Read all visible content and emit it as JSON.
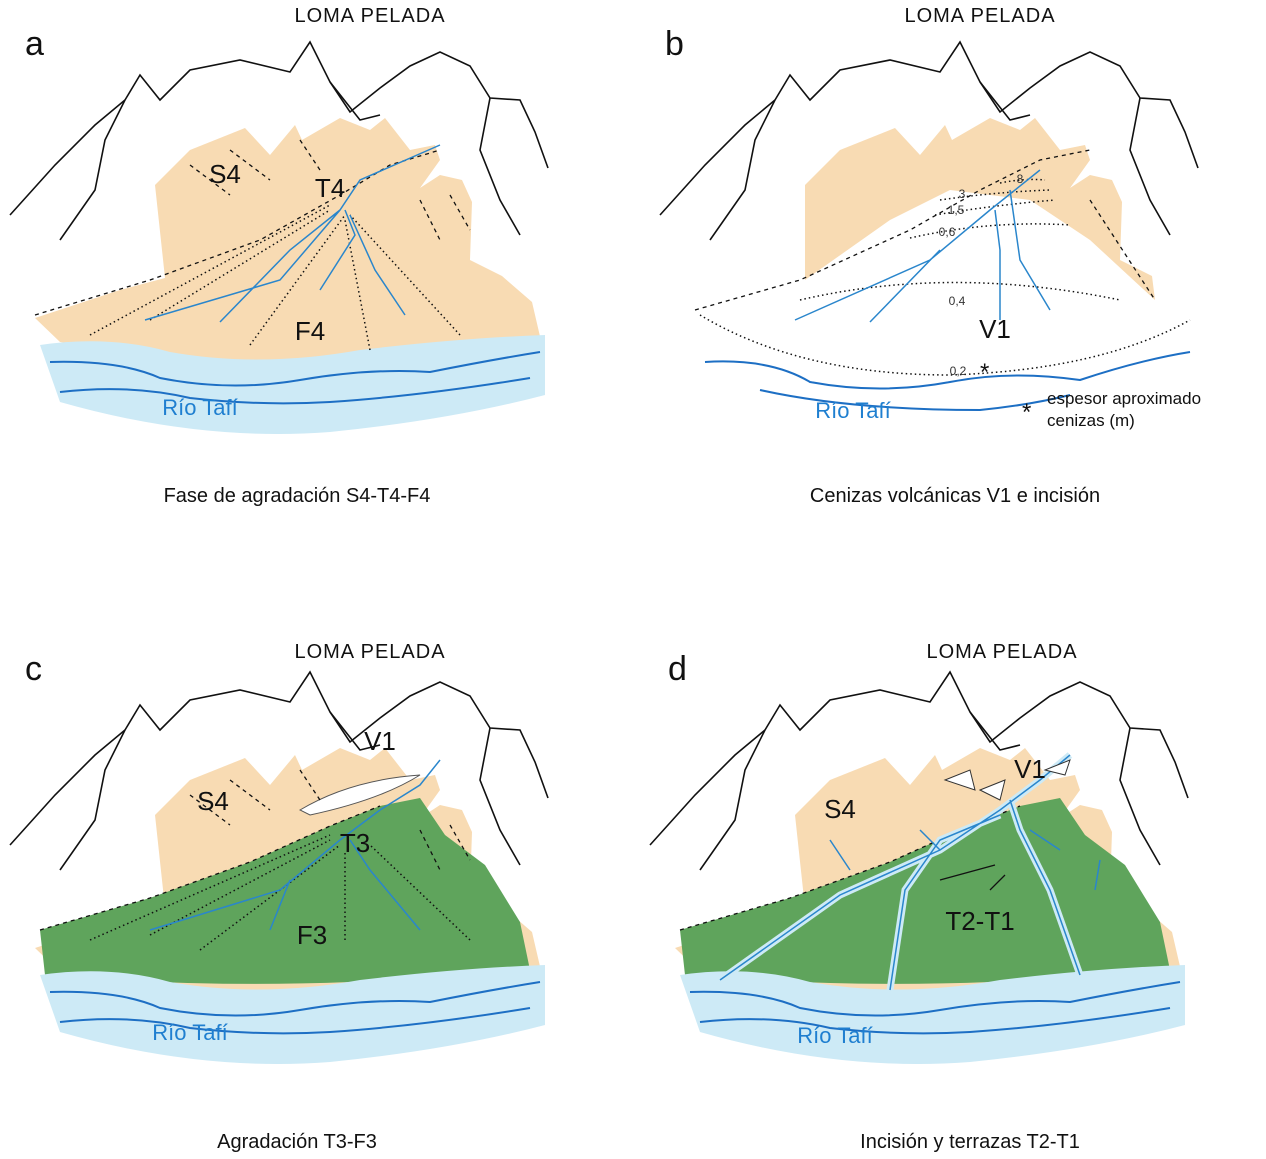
{
  "panels": [
    {
      "letter": "a",
      "title": "LOMA PELADA",
      "labels": [
        "S4",
        "T4",
        "F4"
      ],
      "river": "Río Tafí",
      "caption": "Fase de agradación S4-T4-F4"
    },
    {
      "letter": "b",
      "title": "LOMA PELADA",
      "labels": [
        "V1"
      ],
      "contours": [
        "8",
        "3",
        "1,5",
        "0,6",
        "0,4",
        "0,2"
      ],
      "marker": "*",
      "river": "Río Tafí",
      "legend": {
        "symbol": "*",
        "lines": [
          "espesor aproximado",
          "cenizas (m)"
        ]
      },
      "caption": "Cenizas volcánicas V1 e incisión"
    },
    {
      "letter": "c",
      "title": "LOMA PELADA",
      "labels": [
        "V1",
        "S4",
        "T3",
        "F3"
      ],
      "river": "Río Tafí",
      "caption": "Agradación T3-F3"
    },
    {
      "letter": "d",
      "title": "LOMA PELADA",
      "labels": [
        "V1",
        "S4",
        "T2-T1"
      ],
      "river": "Río Tafí",
      "caption": "Incisión y terrazas T2-T1"
    }
  ]
}
